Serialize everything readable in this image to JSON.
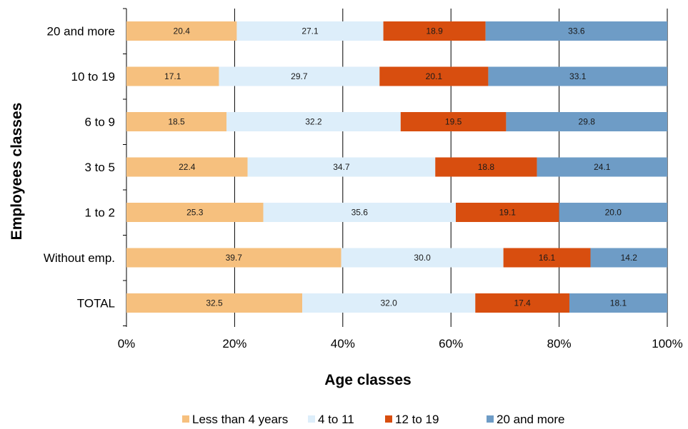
{
  "chart_data": {
    "type": "bar",
    "orientation": "horizontal",
    "stacked": "percent",
    "title": "",
    "xlabel": "Age classes",
    "ylabel": "Employees classes",
    "categories": [
      "20 and more",
      "10 to 19",
      "6 to 9",
      "3 to 5",
      "1 to 2",
      "Without emp.",
      "TOTAL"
    ],
    "series": [
      {
        "name": "Less than 4 years",
        "color": "#F6C07E",
        "values": [
          20.4,
          17.1,
          18.5,
          22.4,
          25.3,
          39.7,
          32.5
        ]
      },
      {
        "name": "4 to 11",
        "color": "#DDEEFA",
        "values": [
          27.1,
          29.7,
          32.2,
          34.7,
          35.6,
          30.0,
          32.0
        ]
      },
      {
        "name": "12 to 19",
        "color": "#D84E0F",
        "values": [
          18.9,
          20.1,
          19.5,
          18.8,
          19.1,
          16.1,
          17.4
        ]
      },
      {
        "name": "20 and more",
        "color": "#6E9CC6",
        "values": [
          33.6,
          33.1,
          29.8,
          24.1,
          20.0,
          14.2,
          18.1
        ]
      }
    ],
    "value_labels": {
      "20 and more": [
        "20.4",
        "27.1",
        "18.9",
        "33.6"
      ],
      "10 to 19": [
        "17.1",
        "29.7",
        "20.1",
        "33.1"
      ],
      "6 to 9": [
        "18.5",
        "32.2",
        "19.5",
        "29.8"
      ],
      "3 to 5": [
        "22.4",
        "34.7",
        "18.8",
        "24.1"
      ],
      "1 to 2": [
        "25.3",
        "35.6",
        "19.1",
        "20.0"
      ],
      "Without emp.": [
        "39.7",
        "30.0",
        "16.1",
        "14.2"
      ],
      "TOTAL": [
        "32.5",
        "32.0",
        "17.4",
        "18.1"
      ]
    },
    "xlim": [
      0,
      100
    ],
    "x_ticks": [
      "0%",
      "20%",
      "40%",
      "60%",
      "80%",
      "100%"
    ],
    "grid": "vertical",
    "legend": "bottom"
  }
}
